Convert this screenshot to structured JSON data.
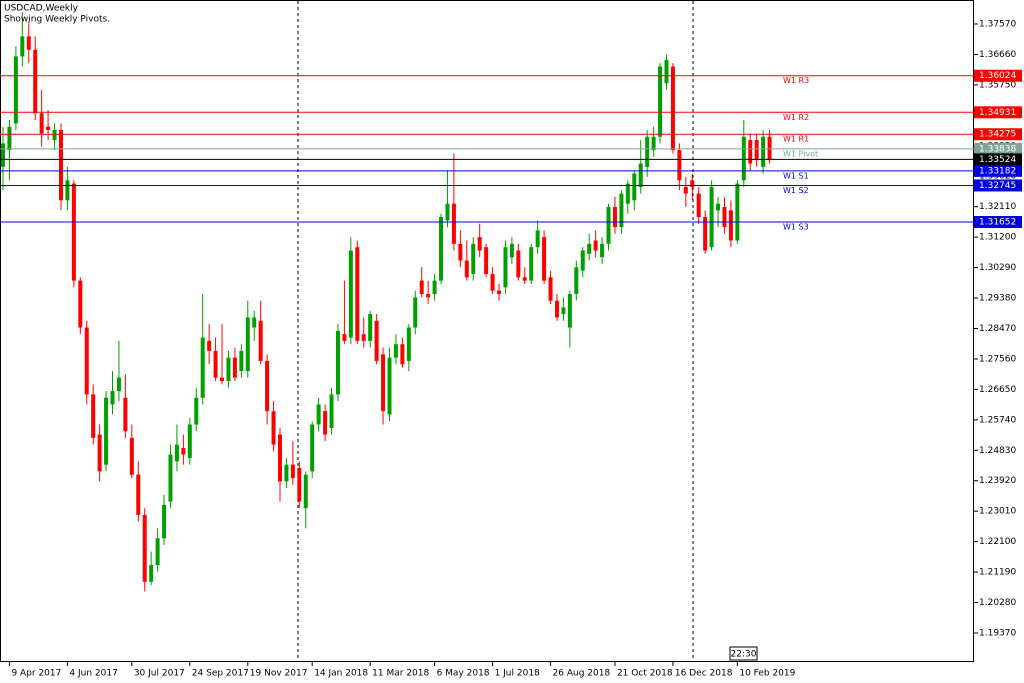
{
  "chart_data": {
    "type": "candlestick",
    "title": "USDCAD,Weekly",
    "subtitle": "Showing Weekly Pivots.",
    "time_label": "22:30",
    "up_color": "#00a000",
    "down_color": "#ff0000",
    "ylim": [
      1.18503,
      1.38287
    ],
    "yticks": [
      {
        "value": 1.3757,
        "label": "1.37570"
      },
      {
        "value": 1.3666,
        "label": "1.36660"
      },
      {
        "value": 1.3575,
        "label": "1.35750"
      },
      {
        "value": 1.3484,
        "label": "1.34840"
      },
      {
        "value": 1.3393,
        "label": "1.33930"
      },
      {
        "value": 1.3302,
        "label": "1.33020"
      },
      {
        "value": 1.3211,
        "label": "1.32110"
      },
      {
        "value": 1.312,
        "label": "1.31200"
      },
      {
        "value": 1.3029,
        "label": "1.30290"
      },
      {
        "value": 1.2938,
        "label": "1.29380"
      },
      {
        "value": 1.2847,
        "label": "1.28470"
      },
      {
        "value": 1.2756,
        "label": "1.27560"
      },
      {
        "value": 1.2665,
        "label": "1.26650"
      },
      {
        "value": 1.2574,
        "label": "1.25740"
      },
      {
        "value": 1.2483,
        "label": "1.24830"
      },
      {
        "value": 1.2392,
        "label": "1.23920"
      },
      {
        "value": 1.2301,
        "label": "1.23010"
      },
      {
        "value": 1.221,
        "label": "1.22100"
      },
      {
        "value": 1.2119,
        "label": "1.21190"
      },
      {
        "value": 1.2028,
        "label": "1.20280"
      },
      {
        "value": 1.1937,
        "label": "1.19370"
      }
    ],
    "xticks": [
      {
        "value": 1,
        "label": "9 Apr 2017"
      },
      {
        "value": 10,
        "label": "4 Jun 2017"
      },
      {
        "value": 20,
        "label": "30 Jul 2017"
      },
      {
        "value": 29,
        "label": "24 Sep 2017"
      },
      {
        "value": 38,
        "label": "19 Nov 2017"
      },
      {
        "value": 48,
        "label": "14 Jan 2018"
      },
      {
        "value": 57,
        "label": "11 Mar 2018"
      },
      {
        "value": 67,
        "label": "6 May 2018"
      },
      {
        "value": 76,
        "label": "1 Jul 2018"
      },
      {
        "value": 85,
        "label": "26 Aug 2018"
      },
      {
        "value": 95,
        "label": "21 Oct 2018"
      },
      {
        "value": 104,
        "label": "16 Dec 2018"
      },
      {
        "value": 114,
        "label": "10 Feb 2019"
      }
    ],
    "levels": [
      {
        "name": "W1 R3",
        "value": 1.36024,
        "color": "#ff0000"
      },
      {
        "name": "W1 R2",
        "value": 1.34931,
        "color": "#ff0000"
      },
      {
        "name": "W1 R1",
        "value": 1.34275,
        "color": "#ff0000"
      },
      {
        "name": "W1 Pivot",
        "value": 1.33838,
        "color": "#7fa59a"
      },
      {
        "name": "W1 S1",
        "value": 1.33182,
        "color": "#0000e0"
      },
      {
        "name": "W1 S2",
        "value": 1.32745,
        "color": "#0000e0"
      },
      {
        "name": "W1 S3",
        "value": 1.31652,
        "color": "#0000e0"
      }
    ],
    "current_price": 1.33524,
    "open": [
      1.333,
      1.338,
      1.346,
      1.366,
      1.372,
      1.368,
      1.349,
      1.345,
      1.341,
      1.344,
      1.323,
      1.328,
      1.299,
      1.285,
      1.265,
      1.253,
      1.244,
      1.262,
      1.266,
      1.264,
      1.252,
      1.241,
      1.229,
      1.209,
      1.214,
      1.222,
      1.233,
      1.245,
      1.249,
      1.246,
      1.256,
      1.264,
      1.281,
      1.278,
      1.27,
      1.269,
      1.276,
      1.272,
      1.272,
      1.285,
      1.287,
      1.275,
      1.26,
      1.253,
      1.239,
      1.244,
      1.243,
      1.231,
      1.242,
      1.256,
      1.26,
      1.255,
      1.265,
      1.283,
      1.282,
      1.309,
      1.283,
      1.281,
      1.287,
      1.277,
      1.259,
      1.276,
      1.28,
      1.275,
      1.285,
      1.299,
      1.295,
      1.295,
      1.299,
      1.317,
      1.322,
      1.31,
      1.305,
      1.301,
      1.312,
      1.309,
      1.301,
      1.296,
      1.297,
      1.306,
      1.308,
      1.3,
      1.299,
      1.309,
      1.312,
      1.3,
      1.293,
      1.289,
      1.285,
      1.295,
      1.302,
      1.307,
      1.311,
      1.306,
      1.31,
      1.321,
      1.315,
      1.322,
      1.323,
      1.327,
      1.333,
      1.338,
      1.342,
      1.358,
      1.363,
      1.338,
      1.327,
      1.329,
      1.325,
      1.318,
      1.309,
      1.32,
      1.321,
      1.32,
      1.311,
      1.329,
      1.341,
      1.341,
      1.333,
      1.342
    ],
    "high": [
      1.345,
      1.347,
      1.369,
      1.3793,
      1.3765,
      1.372,
      1.356,
      1.35,
      1.346,
      1.346,
      1.333,
      1.329,
      1.3,
      1.287,
      1.268,
      1.256,
      1.266,
      1.272,
      1.281,
      1.271,
      1.256,
      1.245,
      1.231,
      1.218,
      1.225,
      1.235,
      1.25,
      1.256,
      1.253,
      1.258,
      1.267,
      1.295,
      1.286,
      1.282,
      1.286,
      1.278,
      1.279,
      1.28,
      1.293,
      1.29,
      1.293,
      1.277,
      1.263,
      1.255,
      1.246,
      1.251,
      1.245,
      1.242,
      1.257,
      1.264,
      1.262,
      1.267,
      1.286,
      1.299,
      1.312,
      1.311,
      1.288,
      1.29,
      1.289,
      1.279,
      1.279,
      1.283,
      1.282,
      1.286,
      1.296,
      1.303,
      1.299,
      1.301,
      1.319,
      1.332,
      1.337,
      1.314,
      1.311,
      1.312,
      1.316,
      1.31,
      1.303,
      1.298,
      1.311,
      1.312,
      1.31,
      1.303,
      1.31,
      1.317,
      1.314,
      1.302,
      1.295,
      1.294,
      1.296,
      1.305,
      1.309,
      1.313,
      1.314,
      1.312,
      1.322,
      1.324,
      1.326,
      1.329,
      1.332,
      1.341,
      1.344,
      1.345,
      1.364,
      1.3665,
      1.364,
      1.34,
      1.33,
      1.331,
      1.327,
      1.32,
      1.329,
      1.324,
      1.324,
      1.323,
      1.329,
      1.347,
      1.343,
      1.343,
      1.344,
      1.344
    ],
    "low": [
      1.326,
      1.329,
      1.344,
      1.363,
      1.364,
      1.347,
      1.339,
      1.341,
      1.338,
      1.32,
      1.32,
      1.297,
      1.283,
      1.262,
      1.25,
      1.239,
      1.242,
      1.259,
      1.263,
      1.252,
      1.24,
      1.227,
      1.2061,
      1.208,
      1.212,
      1.22,
      1.231,
      1.242,
      1.244,
      1.244,
      1.254,
      1.262,
      1.274,
      1.269,
      1.268,
      1.267,
      1.269,
      1.27,
      1.27,
      1.281,
      1.274,
      1.256,
      1.248,
      1.233,
      1.237,
      1.238,
      1.231,
      1.225,
      1.24,
      1.254,
      1.251,
      1.253,
      1.263,
      1.28,
      1.28,
      1.28,
      1.279,
      1.279,
      1.274,
      1.256,
      1.257,
      1.274,
      1.273,
      1.272,
      1.283,
      1.294,
      1.292,
      1.293,
      1.298,
      1.315,
      1.308,
      1.303,
      1.299,
      1.299,
      1.306,
      1.3,
      1.295,
      1.293,
      1.295,
      1.304,
      1.299,
      1.298,
      1.298,
      1.307,
      1.298,
      1.292,
      1.287,
      1.287,
      1.279,
      1.293,
      1.3,
      1.305,
      1.306,
      1.304,
      1.308,
      1.313,
      1.313,
      1.319,
      1.32,
      1.325,
      1.33,
      1.336,
      1.34,
      1.356,
      1.337,
      1.326,
      1.321,
      1.323,
      1.316,
      1.307,
      1.308,
      1.315,
      1.313,
      1.309,
      1.31,
      1.327,
      1.332,
      1.333,
      1.331,
      1.334
    ],
    "close": [
      1.34,
      1.345,
      1.366,
      1.372,
      1.368,
      1.349,
      1.343,
      1.344,
      1.344,
      1.323,
      1.329,
      1.299,
      1.285,
      1.265,
      1.252,
      1.242,
      1.264,
      1.266,
      1.27,
      1.254,
      1.241,
      1.229,
      1.209,
      1.214,
      1.222,
      1.232,
      1.247,
      1.25,
      1.247,
      1.256,
      1.264,
      1.282,
      1.278,
      1.27,
      1.269,
      1.276,
      1.27,
      1.278,
      1.288,
      1.288,
      1.275,
      1.26,
      1.25,
      1.239,
      1.244,
      1.24,
      1.233,
      1.241,
      1.256,
      1.262,
      1.253,
      1.265,
      1.284,
      1.281,
      1.308,
      1.281,
      1.281,
      1.289,
      1.275,
      1.26,
      1.276,
      1.28,
      1.274,
      1.285,
      1.294,
      1.295,
      1.294,
      1.299,
      1.318,
      1.322,
      1.31,
      1.305,
      1.3,
      1.31,
      1.308,
      1.301,
      1.296,
      1.295,
      1.309,
      1.31,
      1.3,
      1.299,
      1.309,
      1.314,
      1.299,
      1.293,
      1.288,
      1.291,
      1.295,
      1.303,
      1.308,
      1.31,
      1.308,
      1.31,
      1.321,
      1.315,
      1.325,
      1.328,
      1.331,
      1.334,
      1.342,
      1.342,
      1.363,
      1.365,
      1.338,
      1.329,
      1.325,
      1.327,
      1.318,
      1.308,
      1.327,
      1.322,
      1.315,
      1.311,
      1.328,
      1.342,
      1.334,
      1.335,
      1.342,
      1.335
    ]
  }
}
